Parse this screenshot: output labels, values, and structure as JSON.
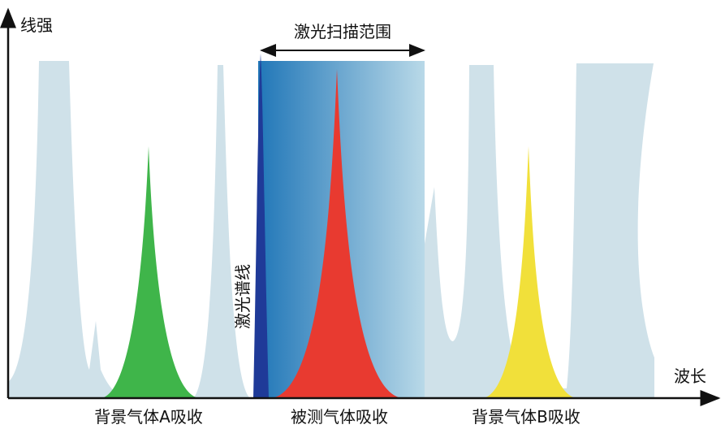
{
  "axes": {
    "y_label": "线强",
    "x_label": "波长"
  },
  "scan_range": "激光扫描范围",
  "laser_line": "激光谱线",
  "labels": [
    "背景气体A吸收",
    "被测气体吸收",
    "背景气体B吸收"
  ]
}
